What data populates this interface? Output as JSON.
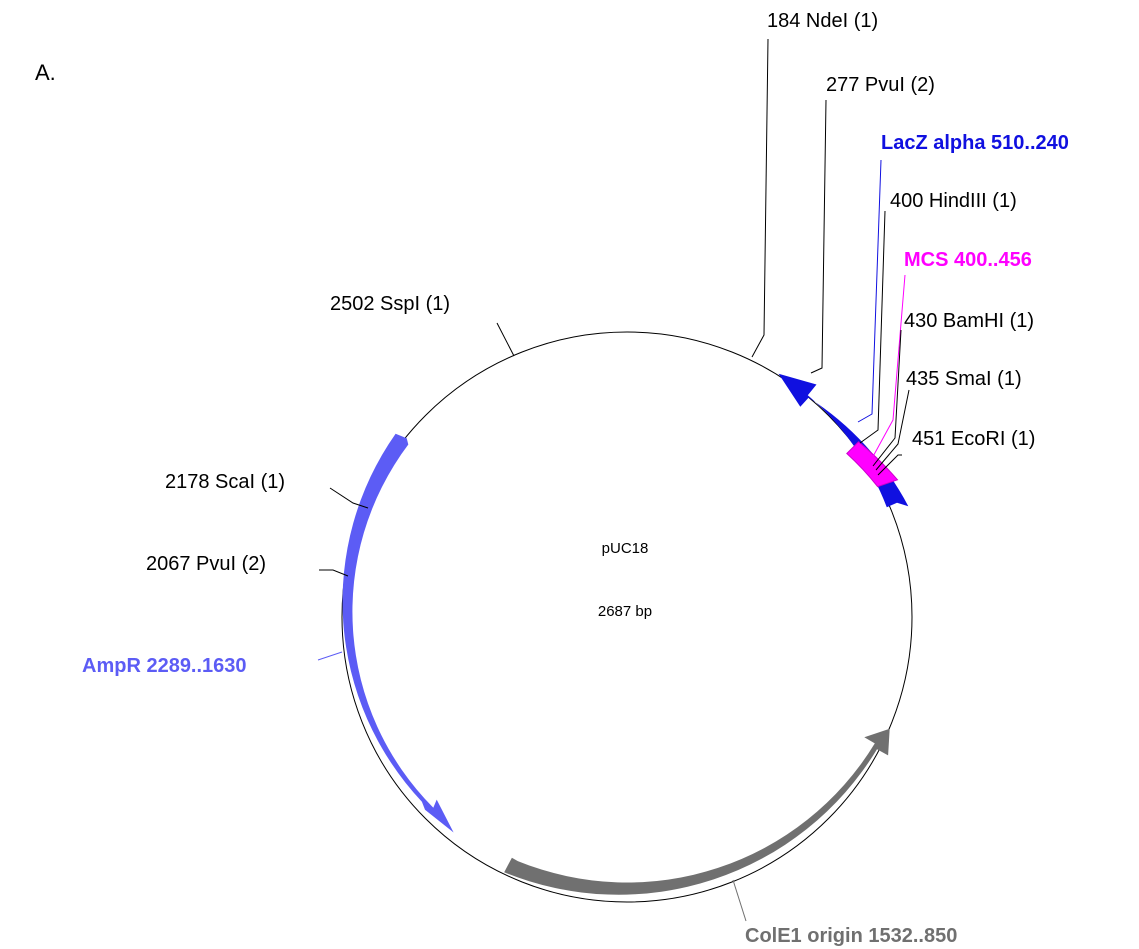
{
  "panel_label": "A.",
  "plasmid": {
    "name": "pUC18",
    "length": "2687 bp"
  },
  "colors": {
    "lacz": "#1010e0",
    "mcs": "#ff00ff",
    "ampr": "#5c5cf5",
    "cole1": "#707070",
    "leader": "#000000"
  },
  "sites": [
    {
      "id": "ndei",
      "label": "184 NdeI (1)"
    },
    {
      "id": "pvui1",
      "label": "277 PvuI (2)"
    },
    {
      "id": "hindiii",
      "label": "400 HindIII (1)"
    },
    {
      "id": "bamhi",
      "label": "430 BamHI (1)"
    },
    {
      "id": "smai",
      "label": "435 SmaI (1)"
    },
    {
      "id": "ecori",
      "label": "451 EcoRI (1)"
    },
    {
      "id": "sspi",
      "label": "2502 SspI (1)"
    },
    {
      "id": "scai",
      "label": "2178 ScaI (1)"
    },
    {
      "id": "pvui2",
      "label": "2067 PvuI (2)"
    }
  ],
  "features": [
    {
      "id": "lacz",
      "label": "LacZ alpha 510..240",
      "color": "#1010e0"
    },
    {
      "id": "mcs",
      "label": "MCS 400..456",
      "color": "#ff00ff"
    },
    {
      "id": "ampr",
      "label": "AmpR 2289..1630",
      "color": "#5c5cf5"
    },
    {
      "id": "cole1",
      "label": "ColE1 origin 1532..850",
      "color": "#707070"
    }
  ]
}
